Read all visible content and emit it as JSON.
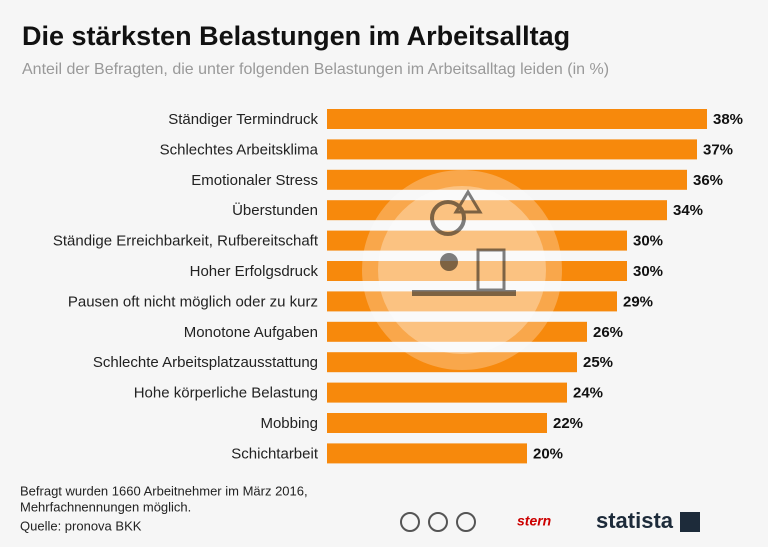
{
  "chart_data": {
    "type": "bar",
    "orientation": "horizontal",
    "title": "Die stärksten Belastungen im Arbeitsalltag",
    "subtitle": "Anteil der Befragten, die unter folgenden Belastungen im Arbeitsalltag leiden (in %)",
    "categories": [
      "Ständiger Termindruck",
      "Schlechtes Arbeitsklima",
      "Emotionaler Stress",
      "Überstunden",
      "Ständige Erreichbarkeit, Rufbereitschaft",
      "Hoher Erfolgsdruck",
      "Pausen oft nicht möglich oder zu kurz",
      "Monotone Aufgaben",
      "Schlechte Arbeitsplatzausstattung",
      "Hohe körperliche Belastung",
      "Mobbing",
      "Schichtarbeit"
    ],
    "values": [
      38,
      37,
      36,
      34,
      30,
      30,
      29,
      26,
      25,
      24,
      22,
      20
    ],
    "value_labels": [
      "38%",
      "37%",
      "36%",
      "34%",
      "30%",
      "30%",
      "29%",
      "26%",
      "25%",
      "24%",
      "22%",
      "20%"
    ],
    "color": "#f7890c",
    "note": [
      "Befragt wurden 1660 Arbeitnehmer im März 2016,",
      "Mehrfachnennungen möglich."
    ],
    "source": "Quelle: pronova BKK",
    "logos": [
      "stern",
      "statista"
    ]
  }
}
